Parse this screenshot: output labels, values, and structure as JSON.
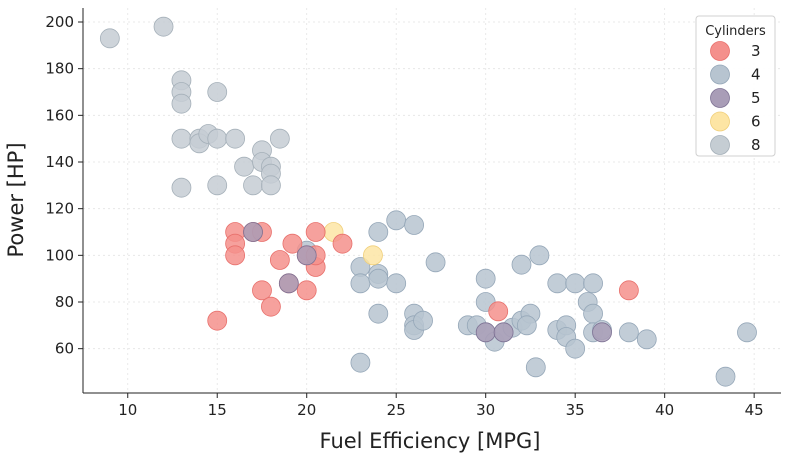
{
  "chart_data": {
    "type": "scatter",
    "xlabel": "Fuel Efficiency [MPG]",
    "ylabel": "Power [HP]",
    "xlim": [
      7.5,
      46.5
    ],
    "ylim": [
      41,
      206
    ],
    "xticks": [
      10,
      15,
      20,
      25,
      30,
      35,
      40,
      45
    ],
    "yticks": [
      60,
      80,
      100,
      120,
      140,
      160,
      180,
      200
    ],
    "grid": true,
    "legend": {
      "title": "Cylinders",
      "placement": "top-right"
    },
    "series": [
      {
        "name": "3",
        "color": "#f4908c",
        "edge": "#e8706c",
        "points": [
          [
            15,
            72
          ],
          [
            16,
            110
          ],
          [
            16,
            105
          ],
          [
            16,
            100
          ],
          [
            17,
            110
          ],
          [
            17.5,
            110
          ],
          [
            17.5,
            85
          ],
          [
            18,
            78
          ],
          [
            18.5,
            98
          ],
          [
            19,
            88
          ],
          [
            19.2,
            105
          ],
          [
            20,
            100
          ],
          [
            20.5,
            95
          ],
          [
            20.5,
            100
          ],
          [
            20.5,
            110
          ],
          [
            20,
            85
          ],
          [
            22,
            105
          ],
          [
            30.7,
            76
          ],
          [
            38,
            85
          ]
        ]
      },
      {
        "name": "4",
        "color": "#b7c4d0",
        "edge": "#95a7b8",
        "points": [
          [
            20,
            102
          ],
          [
            23,
            95
          ],
          [
            23,
            88
          ],
          [
            23,
            54
          ],
          [
            24,
            110
          ],
          [
            24,
            92
          ],
          [
            24,
            90
          ],
          [
            24,
            75
          ],
          [
            25,
            115
          ],
          [
            25,
            88
          ],
          [
            26,
            113
          ],
          [
            26,
            75
          ],
          [
            26,
            70
          ],
          [
            26,
            68
          ],
          [
            26.5,
            72
          ],
          [
            27.2,
            97
          ],
          [
            29,
            70
          ],
          [
            29.5,
            70
          ],
          [
            30,
            90
          ],
          [
            30,
            80
          ],
          [
            30,
            67
          ],
          [
            30.5,
            63
          ],
          [
            31,
            67
          ],
          [
            31.5,
            69
          ],
          [
            32,
            72
          ],
          [
            32,
            96
          ],
          [
            32.5,
            75
          ],
          [
            32.3,
            70
          ],
          [
            32.8,
            52
          ],
          [
            33,
            100
          ],
          [
            34,
            88
          ],
          [
            34,
            68
          ],
          [
            34.5,
            70
          ],
          [
            34.5,
            65
          ],
          [
            35,
            88
          ],
          [
            35,
            60
          ],
          [
            35.7,
            80
          ],
          [
            36,
            88
          ],
          [
            36,
            75
          ],
          [
            36,
            67
          ],
          [
            36.5,
            68
          ],
          [
            38,
            67
          ],
          [
            39,
            64
          ],
          [
            43.4,
            48
          ],
          [
            44.6,
            67
          ]
        ]
      },
      {
        "name": "5",
        "color": "#a99db7",
        "edge": "#7e7294",
        "points": [
          [
            17,
            110
          ],
          [
            19,
            88
          ],
          [
            20,
            100
          ],
          [
            30,
            67
          ],
          [
            31,
            67
          ],
          [
            36.5,
            67
          ]
        ]
      },
      {
        "name": "6",
        "color": "#fde5a4",
        "edge": "#f0cf7a",
        "points": [
          [
            21.5,
            110
          ],
          [
            23.7,
            100
          ]
        ]
      },
      {
        "name": "8",
        "color": "#c5cdd3",
        "edge": "#a5b0b9",
        "points": [
          [
            9,
            193
          ],
          [
            12,
            198
          ],
          [
            13,
            175
          ],
          [
            13,
            170
          ],
          [
            13,
            165
          ],
          [
            13,
            150
          ],
          [
            13,
            129
          ],
          [
            14,
            150
          ],
          [
            14,
            148
          ],
          [
            14.5,
            152
          ],
          [
            15,
            170
          ],
          [
            15,
            150
          ],
          [
            15,
            130
          ],
          [
            16,
            150
          ],
          [
            16.5,
            138
          ],
          [
            17,
            130
          ],
          [
            17.5,
            145
          ],
          [
            17.5,
            140
          ],
          [
            18,
            138
          ],
          [
            18,
            135
          ],
          [
            18,
            130
          ],
          [
            18.5,
            150
          ]
        ]
      }
    ]
  }
}
